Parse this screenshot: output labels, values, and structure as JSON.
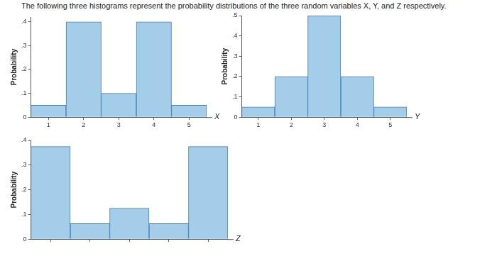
{
  "title": "The following three histograms represent the probability distributions of the three random variables X, Y, and Z respectively.",
  "chart_data": [
    {
      "type": "bar",
      "x_label": "X",
      "y_label": "Probability",
      "categories": [
        1,
        2,
        3,
        4,
        5
      ],
      "values": [
        0.05,
        0.4,
        0.1,
        0.4,
        0.05
      ],
      "color": "#a3cde9",
      "ylim": [
        0,
        0.42
      ],
      "yticks": [
        0,
        {
          "value": 0.1,
          "label": ".1"
        },
        {
          "value": 0.2,
          "label": ".2"
        },
        {
          "value": 0.3,
          "label": ".3"
        },
        {
          "value": 0.4,
          "label": ".4"
        }
      ],
      "grid": false
    },
    {
      "type": "bar",
      "x_label": "Y",
      "y_label": "Probability",
      "categories": [
        1,
        2,
        3,
        4,
        5
      ],
      "values": [
        0.05,
        0.2,
        0.5,
        0.2,
        0.05
      ],
      "color": "#a3cde9",
      "ylim": [
        0,
        0.5
      ],
      "yticks": [
        0,
        {
          "value": 0.1,
          "label": ".1"
        },
        {
          "value": 0.2,
          "label": ".2"
        },
        {
          "value": 0.3,
          "label": ".3"
        },
        {
          "value": 0.4,
          "label": ".4"
        },
        {
          "value": 0.5,
          "label": ".5"
        }
      ],
      "grid": false
    },
    {
      "type": "bar",
      "x_label": "Z",
      "y_label": "Probability",
      "categories": [
        null,
        null,
        null,
        null,
        null
      ],
      "values": [
        0.375,
        0.0625,
        0.125,
        0.0625,
        0.375
      ],
      "color": "#a3cde9",
      "ylim": [
        0,
        0.4
      ],
      "yticks": [
        0,
        {
          "value": 0.1,
          "label": ".1"
        },
        {
          "value": 0.2,
          "label": ".2"
        },
        {
          "value": 0.3,
          "label": ".3"
        },
        {
          "value": 0.4,
          "label": ".4"
        }
      ],
      "grid": false,
      "tick_labels": "y"
    }
  ]
}
